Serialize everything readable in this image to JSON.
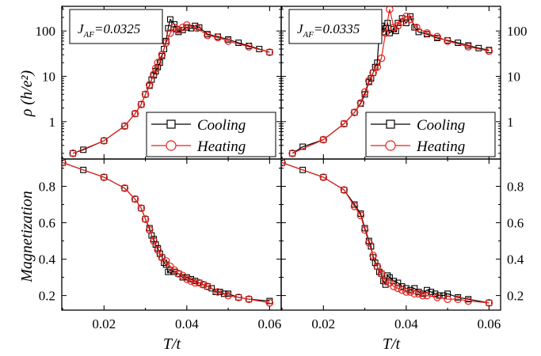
{
  "chart_data": [
    {
      "type": "line",
      "panel": "top-left",
      "annotation": {
        "prefix": "J",
        "sub": "AF",
        "suffix": "=0.0325"
      },
      "ylabel": "ρ (h/e²)",
      "yscale": "log",
      "ylim": [
        0.15,
        350
      ],
      "xlim": [
        0.0098,
        0.0628
      ],
      "yticks": [
        1,
        10,
        100
      ],
      "xticks": [
        0.02,
        0.04,
        0.06
      ],
      "legend": {
        "position": "lower-right",
        "entries": [
          "Cooling",
          "Heating"
        ]
      },
      "series": [
        {
          "name": "Cooling",
          "color": "#000000",
          "marker": "square",
          "x": [
            0.0125,
            0.015,
            0.02,
            0.025,
            0.0275,
            0.029,
            0.03,
            0.031,
            0.0315,
            0.032,
            0.0325,
            0.033,
            0.0335,
            0.034,
            0.0345,
            0.035,
            0.0355,
            0.036,
            0.037,
            0.0375,
            0.038,
            0.039,
            0.04,
            0.041,
            0.042,
            0.043,
            0.045,
            0.0475,
            0.05,
            0.0525,
            0.055,
            0.0575,
            0.06
          ],
          "y": [
            0.2,
            0.24,
            0.38,
            0.8,
            1.5,
            2.4,
            4.0,
            6.2,
            8.5,
            10.5,
            13,
            16,
            20,
            28,
            40,
            60,
            115,
            180,
            140,
            110,
            95,
            105,
            120,
            115,
            130,
            120,
            85,
            75,
            65,
            55,
            47,
            40,
            34
          ]
        },
        {
          "name": "Heating",
          "color": "#e8201a",
          "marker": "circle",
          "x": [
            0.0125,
            0.02,
            0.025,
            0.0275,
            0.029,
            0.03,
            0.031,
            0.032,
            0.0325,
            0.033,
            0.034,
            0.035,
            0.036,
            0.037,
            0.038,
            0.039,
            0.04,
            0.0425,
            0.045,
            0.0475,
            0.05,
            0.055,
            0.06
          ],
          "y": [
            0.2,
            0.38,
            0.8,
            1.5,
            2.4,
            4.0,
            6.5,
            11,
            15,
            20,
            30,
            55,
            90,
            120,
            105,
            120,
            135,
            115,
            80,
            72,
            60,
            45,
            34
          ]
        }
      ]
    },
    {
      "type": "line",
      "panel": "top-right",
      "annotation": {
        "prefix": "J",
        "sub": "AF",
        "suffix": "=0.0335"
      },
      "ylabel": "",
      "yscale": "log",
      "ylim": [
        0.15,
        350
      ],
      "xlim": [
        0.0098,
        0.0628
      ],
      "yticks": [
        1,
        10,
        100
      ],
      "xticks": [
        0.02,
        0.04,
        0.06
      ],
      "legend": {
        "position": "lower-right",
        "entries": [
          "Cooling",
          "Heating"
        ]
      },
      "series": [
        {
          "name": "Cooling",
          "color": "#000000",
          "marker": "square",
          "x": [
            0.0125,
            0.015,
            0.02,
            0.025,
            0.0275,
            0.029,
            0.03,
            0.031,
            0.0315,
            0.032,
            0.0325,
            0.033,
            0.0335,
            0.034,
            0.0345,
            0.035,
            0.0355,
            0.036,
            0.037,
            0.0375,
            0.038,
            0.039,
            0.04,
            0.041,
            0.042,
            0.043,
            0.045,
            0.0475,
            0.05,
            0.0525,
            0.055,
            0.0575,
            0.06
          ],
          "y": [
            0.2,
            0.28,
            0.4,
            0.9,
            1.6,
            2.5,
            4.0,
            7.5,
            9.0,
            12,
            16,
            20,
            100,
            130,
            95,
            115,
            150,
            90,
            110,
            100,
            150,
            190,
            150,
            210,
            120,
            95,
            85,
            70,
            62,
            55,
            48,
            42,
            38
          ]
        },
        {
          "name": "Heating",
          "color": "#e8201a",
          "marker": "circle",
          "x": [
            0.0125,
            0.02,
            0.025,
            0.0275,
            0.029,
            0.03,
            0.031,
            0.032,
            0.033,
            0.034,
            0.035,
            0.036,
            0.037,
            0.038,
            0.039,
            0.04,
            0.041,
            0.0425,
            0.045,
            0.0475,
            0.05,
            0.055,
            0.06
          ],
          "y": [
            0.2,
            0.4,
            0.9,
            1.6,
            2.6,
            4.5,
            8.0,
            12,
            16,
            25,
            90,
            300,
            120,
            130,
            160,
            210,
            180,
            120,
            90,
            75,
            60,
            45,
            36
          ]
        }
      ]
    },
    {
      "type": "line",
      "panel": "bottom-left",
      "ylabel": "Magnetization",
      "xlabel": "T/t",
      "yscale": "linear",
      "ylim": [
        0.12,
        0.95
      ],
      "xlim": [
        0.0098,
        0.0628
      ],
      "yticks": [
        0.2,
        0.4,
        0.6,
        0.8
      ],
      "xticks": [
        0.02,
        0.04,
        0.06
      ],
      "series": [
        {
          "name": "Cooling",
          "color": "#000000",
          "marker": "square",
          "x": [
            0.01,
            0.015,
            0.02,
            0.025,
            0.0275,
            0.029,
            0.03,
            0.031,
            0.0315,
            0.032,
            0.0325,
            0.033,
            0.0335,
            0.034,
            0.0345,
            0.035,
            0.0355,
            0.036,
            0.037,
            0.038,
            0.039,
            0.04,
            0.041,
            0.042,
            0.043,
            0.044,
            0.045,
            0.046,
            0.047,
            0.048,
            0.049,
            0.05,
            0.0525,
            0.055,
            0.06
          ],
          "y": [
            0.93,
            0.89,
            0.85,
            0.79,
            0.73,
            0.68,
            0.62,
            0.57,
            0.53,
            0.51,
            0.48,
            0.46,
            0.43,
            0.41,
            0.38,
            0.37,
            0.33,
            0.34,
            0.33,
            0.32,
            0.3,
            0.3,
            0.29,
            0.28,
            0.27,
            0.26,
            0.25,
            0.24,
            0.22,
            0.22,
            0.21,
            0.21,
            0.19,
            0.18,
            0.17
          ]
        },
        {
          "name": "Heating",
          "color": "#e8201a",
          "marker": "circle",
          "x": [
            0.01,
            0.02,
            0.025,
            0.0275,
            0.029,
            0.03,
            0.031,
            0.032,
            0.033,
            0.034,
            0.035,
            0.036,
            0.037,
            0.038,
            0.039,
            0.04,
            0.041,
            0.042,
            0.043,
            0.044,
            0.045,
            0.0475,
            0.05,
            0.0525,
            0.055,
            0.06
          ],
          "y": [
            0.93,
            0.85,
            0.79,
            0.73,
            0.68,
            0.62,
            0.56,
            0.5,
            0.45,
            0.41,
            0.39,
            0.36,
            0.34,
            0.32,
            0.31,
            0.29,
            0.28,
            0.27,
            0.27,
            0.26,
            0.25,
            0.22,
            0.2,
            0.19,
            0.18,
            0.16
          ]
        }
      ]
    },
    {
      "type": "line",
      "panel": "bottom-right",
      "ylabel": "",
      "xlabel": "T/t",
      "yscale": "linear",
      "ylim": [
        0.12,
        0.95
      ],
      "xlim": [
        0.0098,
        0.0628
      ],
      "yticks": [
        0.2,
        0.4,
        0.6,
        0.8
      ],
      "xticks": [
        0.02,
        0.04,
        0.06
      ],
      "series": [
        {
          "name": "Cooling",
          "color": "#000000",
          "marker": "square",
          "x": [
            0.01,
            0.015,
            0.02,
            0.025,
            0.0275,
            0.029,
            0.03,
            0.031,
            0.0315,
            0.032,
            0.0325,
            0.033,
            0.0335,
            0.034,
            0.0345,
            0.035,
            0.0355,
            0.036,
            0.037,
            0.038,
            0.039,
            0.04,
            0.041,
            0.042,
            0.043,
            0.044,
            0.045,
            0.046,
            0.047,
            0.048,
            0.049,
            0.05,
            0.0525,
            0.055,
            0.06
          ],
          "y": [
            0.93,
            0.89,
            0.85,
            0.78,
            0.7,
            0.65,
            0.57,
            0.5,
            0.47,
            0.41,
            0.38,
            0.36,
            0.33,
            0.32,
            0.28,
            0.26,
            0.31,
            0.3,
            0.28,
            0.27,
            0.25,
            0.24,
            0.23,
            0.24,
            0.22,
            0.21,
            0.23,
            0.22,
            0.21,
            0.2,
            0.2,
            0.21,
            0.19,
            0.18,
            0.16
          ]
        },
        {
          "name": "Heating",
          "color": "#e8201a",
          "marker": "circle",
          "x": [
            0.01,
            0.02,
            0.025,
            0.0275,
            0.029,
            0.03,
            0.031,
            0.032,
            0.033,
            0.034,
            0.035,
            0.036,
            0.037,
            0.038,
            0.039,
            0.04,
            0.041,
            0.042,
            0.043,
            0.044,
            0.045,
            0.0475,
            0.05,
            0.0525,
            0.055,
            0.06
          ],
          "y": [
            0.93,
            0.85,
            0.78,
            0.69,
            0.64,
            0.56,
            0.49,
            0.42,
            0.36,
            0.32,
            0.28,
            0.27,
            0.25,
            0.24,
            0.23,
            0.22,
            0.22,
            0.21,
            0.21,
            0.2,
            0.2,
            0.19,
            0.18,
            0.18,
            0.17,
            0.16
          ]
        }
      ]
    }
  ],
  "colors": {
    "cooling": "#000000",
    "heating": "#e8201a"
  }
}
